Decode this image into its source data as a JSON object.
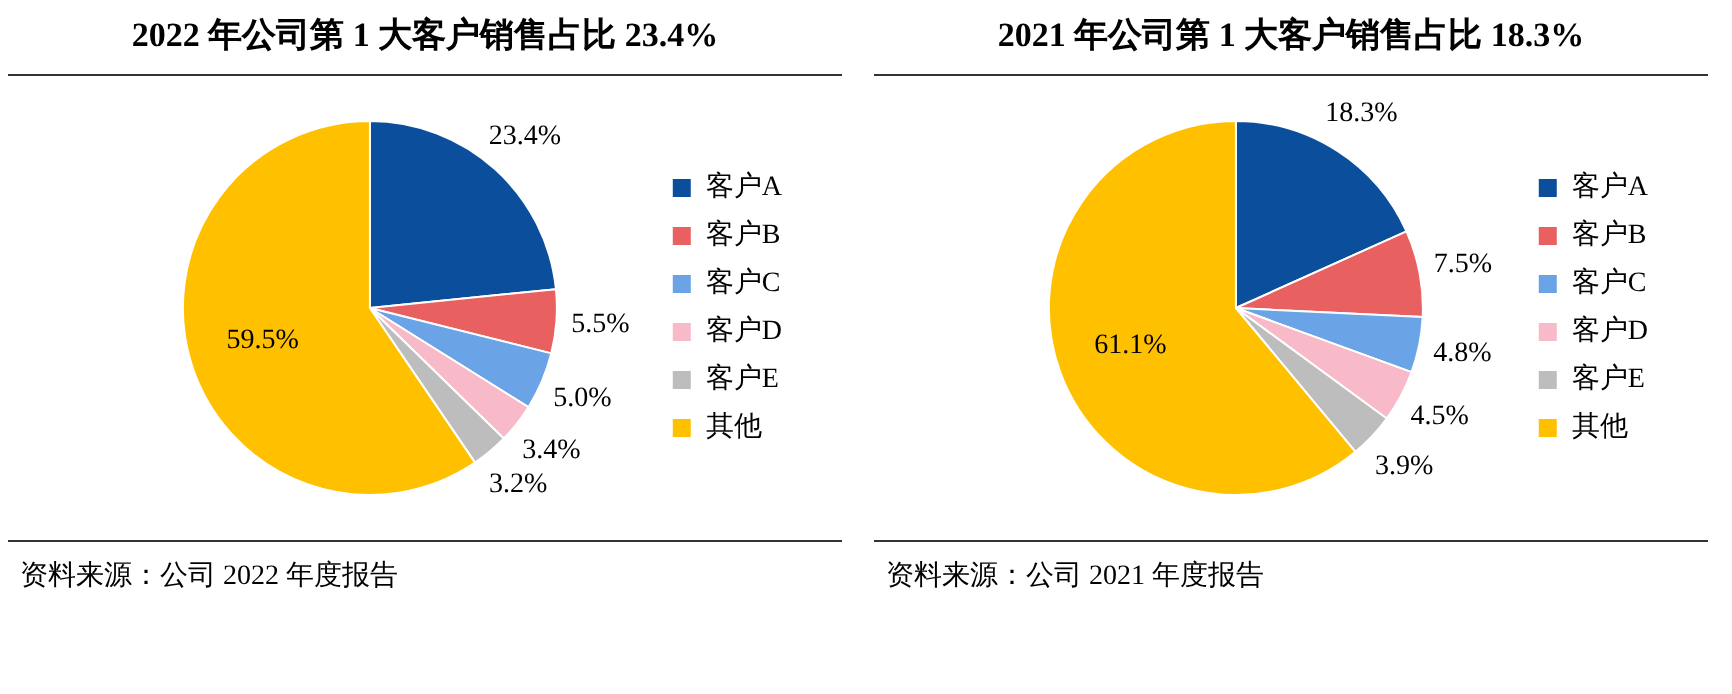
{
  "chart_data": [
    {
      "type": "pie",
      "title": "2022 年公司第 1 大客户销售占比 23.4%",
      "categories": [
        "客户A",
        "客户B",
        "客户C",
        "客户D",
        "客户E",
        "其他"
      ],
      "values": [
        23.4,
        5.5,
        5.0,
        3.4,
        3.2,
        59.5
      ],
      "value_labels": [
        "23.4%",
        "5.5%",
        "5.0%",
        "3.4%",
        "3.2%",
        "59.5%"
      ],
      "colors": [
        "#0b4f9c",
        "#e96060",
        "#6aa4e6",
        "#f8b9c9",
        "#bdbdbd",
        "#ffc000"
      ],
      "legend": "right",
      "annotations": [
        "资料来源：公司 2022 年度报告"
      ]
    },
    {
      "type": "pie",
      "title": "2021 年公司第 1 大客户销售占比 18.3%",
      "categories": [
        "客户A",
        "客户B",
        "客户C",
        "客户D",
        "客户E",
        "其他"
      ],
      "values": [
        18.3,
        7.5,
        4.8,
        4.5,
        3.9,
        61.1
      ],
      "value_labels": [
        "18.3%",
        "7.5%",
        "4.8%",
        "4.5%",
        "3.9%",
        "61.1%"
      ],
      "colors": [
        "#0b4f9c",
        "#e96060",
        "#6aa4e6",
        "#f8b9c9",
        "#bdbdbd",
        "#ffc000"
      ],
      "legend": "right",
      "annotations": [
        "资料来源：公司 2021 年度报告"
      ]
    }
  ]
}
